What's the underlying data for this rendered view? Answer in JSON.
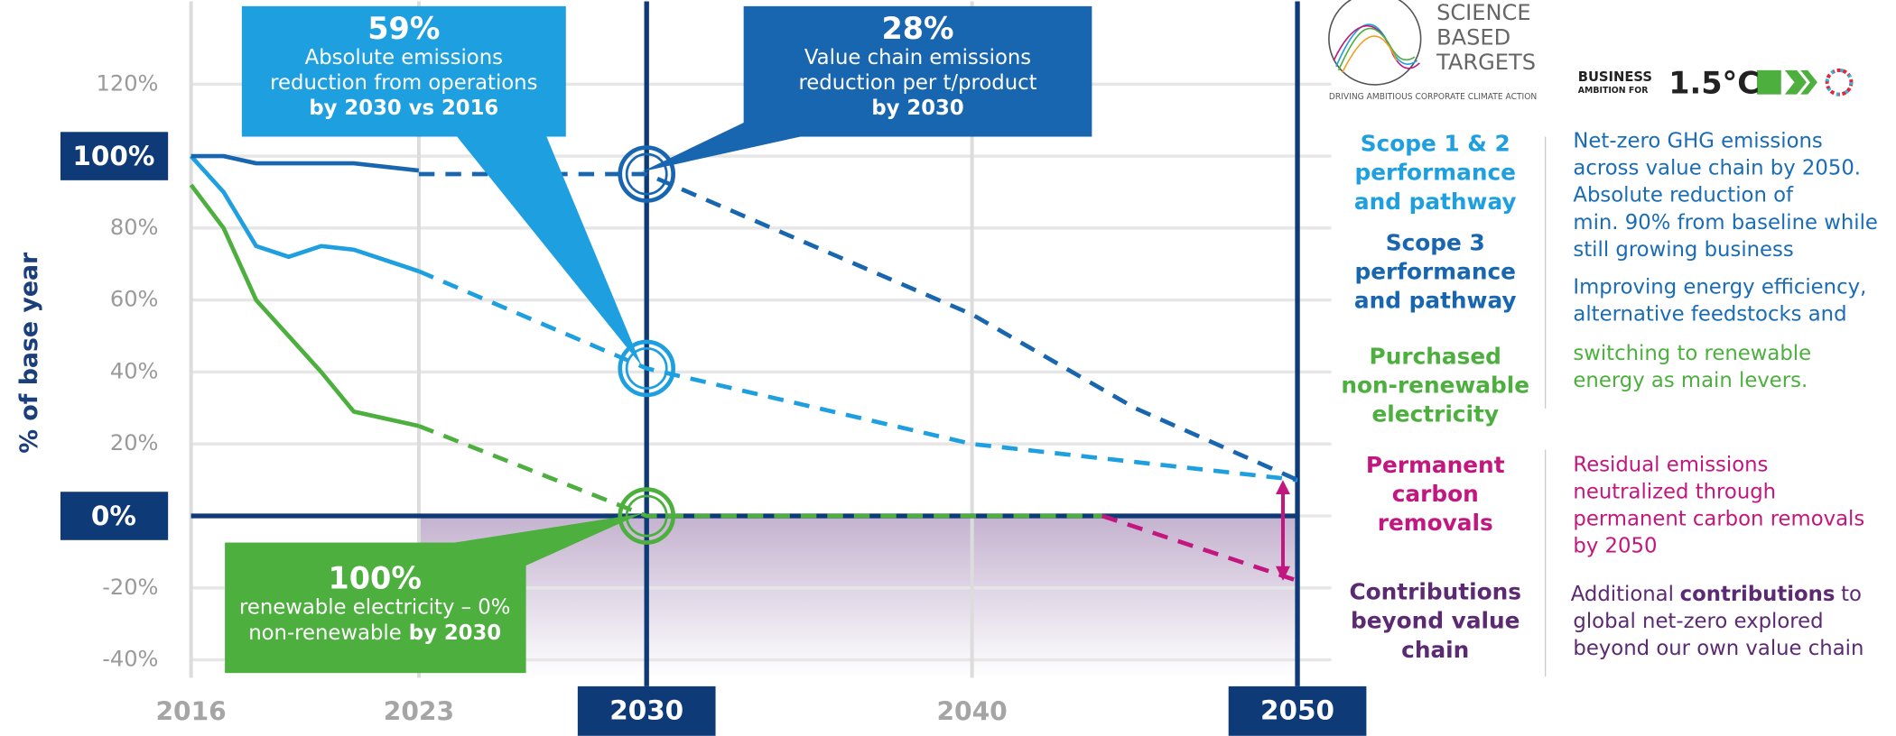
{
  "chart_data": {
    "type": "line",
    "y_label": "% of base year",
    "xlim": [
      2016,
      2050
    ],
    "xticks": [
      2016,
      2023,
      2030,
      2040,
      2050
    ],
    "highlight_xticks": [
      2030,
      2050
    ],
    "ylim": [
      -45,
      143
    ],
    "yticks": [
      {
        "value": 120,
        "label": "120%"
      },
      {
        "value": 100,
        "label": "100%"
      },
      {
        "value": 80,
        "label": "80%"
      },
      {
        "value": 60,
        "label": "60%"
      },
      {
        "value": 40,
        "label": "40%"
      },
      {
        "value": 20,
        "label": "20%"
      },
      {
        "value": 0,
        "label": "0%"
      },
      {
        "value": -20,
        "label": "-20%"
      },
      {
        "value": -40,
        "label": "-40%"
      }
    ],
    "highlight_yticks": [
      100,
      0
    ],
    "grid": true,
    "series": [
      {
        "name": "Scope 1 & 2 performance and pathway",
        "color": "#1e9fe0",
        "x": [
          2016,
          2017,
          2018,
          2019,
          2020,
          2021,
          2022,
          2023
        ],
        "values": [
          100,
          90,
          75,
          72,
          75,
          74,
          71,
          68
        ],
        "target_x": [
          2023,
          2030,
          2040,
          2050
        ],
        "target_values": [
          68,
          41,
          20,
          10
        ]
      },
      {
        "name": "Scope 3 performance and pathway",
        "color": "#1865b0",
        "x": [
          2016,
          2017,
          2018,
          2019,
          2020,
          2021,
          2022,
          2023
        ],
        "values": [
          100,
          100,
          98,
          98,
          98,
          98,
          97,
          96
        ],
        "target_x": [
          2023,
          2030,
          2040,
          2045,
          2050
        ],
        "target_values": [
          95,
          95,
          56,
          30,
          10
        ]
      },
      {
        "name": "Purchased non-renewable electricity",
        "color": "#4caf3e",
        "x": [
          2016,
          2017,
          2018,
          2019,
          2020,
          2021,
          2022,
          2023
        ],
        "values": [
          92,
          80,
          60,
          50,
          40,
          29,
          27,
          25
        ],
        "target_x": [
          2023,
          2030,
          2044
        ],
        "target_values": [
          25,
          0,
          0
        ]
      },
      {
        "name": "Permanent carbon removals",
        "color": "#c2177f",
        "x": [],
        "values": [],
        "target_x": [
          2044,
          2050
        ],
        "target_values": [
          0,
          -18
        ]
      }
    ],
    "area": {
      "name": "Contributions beyond value chain",
      "color": "#5b2a72"
    },
    "callouts": [
      {
        "headline": "59%",
        "lines": [
          "Absolute emissions",
          "reduction from operations"
        ],
        "emphasis": "by 2030 vs 2016",
        "color": "#1e9fe0"
      },
      {
        "headline": "28%",
        "lines": [
          "Value chain emissions",
          "reduction per t/product"
        ],
        "emphasis": "by 2030",
        "color": "#1865b0"
      },
      {
        "headline": "100%",
        "lines": [
          "renewable electricity – 0%",
          "non-renewable"
        ],
        "emphasis": "by 2030",
        "emphasis_inline": true,
        "color": "#4caf3e"
      }
    ]
  },
  "notes": [
    {
      "color": "#1a6cb7",
      "lines": [
        "Net-zero GHG emissions",
        "across value chain by 2050.",
        "Absolute reduction of",
        "min. 90% from baseline while",
        "still growing business"
      ]
    },
    {
      "color": "#1a6cb7",
      "lines": [
        "Improving energy efficiency,",
        "alternative feedstocks and"
      ]
    },
    {
      "color": "#4caf3e",
      "lines": [
        "switching to renewable",
        "energy as main levers."
      ]
    },
    {
      "color": "#c2177f",
      "lines": [
        "Residual emissions",
        "neutralized through",
        "permanent carbon removals",
        "by 2050"
      ]
    },
    {
      "color": "#5b2a72",
      "lines": [
        [
          {
            "text": "Additional"
          },
          {
            "text": "contributions",
            "bold": true
          },
          {
            "text": "to"
          }
        ],
        "global net-zero explored",
        "beyond our own value chain"
      ]
    }
  ],
  "logos": {
    "sbt": [
      "SCIENCE",
      "BASED",
      "TARGETS"
    ],
    "sbt_tagline": "DRIVING AMBITIOUS CORPORATE CLIMATE ACTION",
    "business": "BUSINESS",
    "ambition": "AMBITION FOR",
    "degree": "1.5°C"
  }
}
